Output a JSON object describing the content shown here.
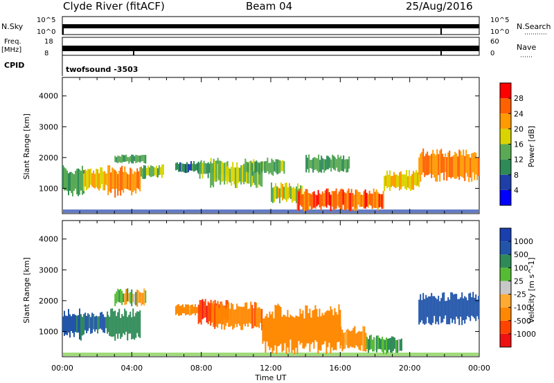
{
  "header": {
    "title": "Clyde River (fitACF)",
    "beam": "Beam 04",
    "date": "25/Aug/2016"
  },
  "top_panels": {
    "nsky_label": "N.Sky",
    "nsky_ticks": [
      "10^5",
      "10^0"
    ],
    "nsearch_label": "N.Search",
    "nsearch_ticks": [
      "10^5",
      "10^0"
    ],
    "freq_label_1": "Freq.",
    "freq_label_2": "[MHz]",
    "freq_ticks": [
      "18",
      "8"
    ],
    "nave_label": "Nave",
    "nave_ticks": [
      "60",
      "0"
    ],
    "cpid_label": "CPID",
    "cpid_value": "twofsound -3503"
  },
  "colors": {
    "power_scale": [
      "#0000ff",
      "#1f3fa8",
      "#2e8b57",
      "#5aaa55",
      "#d9d400",
      "#ff9a00",
      "#ff6000",
      "#ff0000"
    ],
    "velocity_scale": [
      "#ee1111",
      "#ff4400",
      "#ff8800",
      "#ffaa33",
      "#c8c8c8",
      "#55bb33",
      "#2e8b57",
      "#2255aa",
      "#1a3fae"
    ]
  },
  "chart_data": [
    {
      "type": "heatmap",
      "name": "power",
      "xlabel": "",
      "ylabel": "Slant Range [km]",
      "x_ticks": [
        "00:00",
        "04:00",
        "08:00",
        "12:00",
        "16:00",
        "20:00",
        "00:00"
      ],
      "y_ticks": [
        "1000",
        "2000",
        "3000",
        "4000"
      ],
      "xlim": [
        0,
        24
      ],
      "ylim": [
        180,
        4600
      ],
      "colorbar": {
        "label": "Power [dB]",
        "ticks": [
          "4",
          "8",
          "12",
          "16",
          "20",
          "24",
          "28"
        ],
        "range": [
          0,
          32
        ]
      },
      "echo_regions": [
        {
          "t": [
            0.0,
            1.2
          ],
          "r": [
            700,
            1750
          ],
          "v": 12
        },
        {
          "t": [
            1.2,
            2.6
          ],
          "r": [
            900,
            1700
          ],
          "v": 20
        },
        {
          "t": [
            2.6,
            4.5
          ],
          "r": [
            700,
            1750
          ],
          "v": 24
        },
        {
          "t": [
            3.0,
            4.8
          ],
          "r": [
            1800,
            2100
          ],
          "v": 12
        },
        {
          "t": [
            4.5,
            5.8
          ],
          "r": [
            1300,
            1800
          ],
          "v": 14
        },
        {
          "t": [
            6.5,
            8.0
          ],
          "r": [
            1500,
            1900
          ],
          "v": 10
        },
        {
          "t": [
            7.8,
            9.5
          ],
          "r": [
            1300,
            2000
          ],
          "v": 14
        },
        {
          "t": [
            8.5,
            11.5
          ],
          "r": [
            1000,
            1900
          ],
          "v": 16
        },
        {
          "t": [
            10.5,
            12.8
          ],
          "r": [
            1400,
            2000
          ],
          "v": 14
        },
        {
          "t": [
            12.0,
            13.8
          ],
          "r": [
            500,
            1200
          ],
          "v": 18
        },
        {
          "t": [
            13.5,
            18.5
          ],
          "r": [
            250,
            1000
          ],
          "v": 26
        },
        {
          "t": [
            14.0,
            16.5
          ],
          "r": [
            1500,
            2100
          ],
          "v": 12
        },
        {
          "t": [
            18.5,
            20.5
          ],
          "r": [
            900,
            1600
          ],
          "v": 20
        },
        {
          "t": [
            20.5,
            24.0
          ],
          "r": [
            1200,
            2300
          ],
          "v": 24
        }
      ]
    },
    {
      "type": "heatmap",
      "name": "velocity",
      "xlabel": "Time UT",
      "ylabel": "Slant Range [km]",
      "x_ticks": [
        "00:00",
        "04:00",
        "08:00",
        "12:00",
        "16:00",
        "20:00",
        "00:00"
      ],
      "y_ticks": [
        "1000",
        "2000",
        "3000",
        "4000"
      ],
      "xlim": [
        0,
        24
      ],
      "ylim": [
        180,
        4600
      ],
      "colorbar": {
        "label": "Velocity [m s^-1]",
        "ticks": [
          "-1000",
          "-500",
          "-100",
          "-25",
          "25",
          "100",
          "500",
          "1000"
        ]
      },
      "echo_regions": [
        {
          "t": [
            0.0,
            1.2
          ],
          "r": [
            700,
            1750
          ],
          "v": 600
        },
        {
          "t": [
            1.2,
            2.6
          ],
          "r": [
            900,
            1700
          ],
          "v": 500
        },
        {
          "t": [
            2.6,
            4.5
          ],
          "r": [
            700,
            1750
          ],
          "v": 300
        },
        {
          "t": [
            3.0,
            4.8
          ],
          "r": [
            1800,
            2400
          ],
          "v": 0
        },
        {
          "t": [
            6.5,
            8.0
          ],
          "r": [
            1500,
            1900
          ],
          "v": -200
        },
        {
          "t": [
            7.8,
            9.5
          ],
          "r": [
            1200,
            2100
          ],
          "v": -900
        },
        {
          "t": [
            8.5,
            11.5
          ],
          "r": [
            1000,
            2000
          ],
          "v": -400
        },
        {
          "t": [
            11.5,
            16.0
          ],
          "r": [
            250,
            1900
          ],
          "v": -300
        },
        {
          "t": [
            16.0,
            17.5
          ],
          "r": [
            300,
            1200
          ],
          "v": -200
        },
        {
          "t": [
            17.5,
            19.5
          ],
          "r": [
            250,
            900
          ],
          "v": 150
        },
        {
          "t": [
            20.5,
            24.0
          ],
          "r": [
            1200,
            2300
          ],
          "v": 700
        }
      ]
    }
  ]
}
